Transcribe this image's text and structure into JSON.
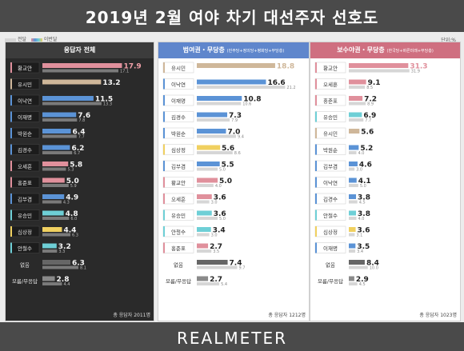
{
  "header": {
    "title": "2019년 2월 여야 차기 대선주자 선호도"
  },
  "legend": {
    "current": "전달",
    "previous": "이번달"
  },
  "unit": "단위:%",
  "footer": {
    "brand": "REALMETER"
  },
  "colors": {
    "header_bg": "#4a4a4a",
    "panel1_head": "#3c3c3c",
    "panel2_head": "#5f86cc",
    "panel3_head": "#cf6f80",
    "prev_bar": "#d6d6d6"
  },
  "chart_data": [
    {
      "type": "bar",
      "title": "응답자 전체",
      "subtitle": "",
      "total_note": "총 응답자 2011명",
      "categories": [
        "황교안",
        "유시민",
        "이낙연",
        "이재명",
        "박원순",
        "김경수",
        "오세훈",
        "홍준표",
        "김부겸",
        "유승민",
        "심상정",
        "안철수",
        "없음",
        "모름/무응답"
      ],
      "series": [
        {
          "name": "이번달",
          "values": [
            17.9,
            13.2,
            11.5,
            7.6,
            6.4,
            6.2,
            5.8,
            5.0,
            4.9,
            4.8,
            4.4,
            3.2,
            6.3,
            2.8
          ]
        },
        {
          "name": "전달",
          "values": [
            17.1,
            null,
            13.3,
            7.8,
            7.7,
            6.7,
            5.3,
            5.9,
            4.3,
            6.0,
            6.3,
            3.3,
            8.1,
            4.4
          ]
        }
      ],
      "bar_colors": [
        "#e0909c",
        "#cfb79a",
        "#5b93d6",
        "#5b93d6",
        "#5b93d6",
        "#5b93d6",
        "#e0909c",
        "#e0909c",
        "#5b93d6",
        "#6ecfd6",
        "#f0d060",
        "#6ecfd6",
        "#666666",
        "#8a8a8a"
      ]
    },
    {
      "type": "bar",
      "title": "범여권・무당층",
      "subtitle": "(민주당+정의당+평화당+무당층)",
      "total_note": "총 응답자 1212명",
      "categories": [
        "유시민",
        "이낙연",
        "이재명",
        "김경수",
        "박원순",
        "심상정",
        "김부겸",
        "황교안",
        "오세훈",
        "유승민",
        "안철수",
        "홍준표",
        "없음",
        "모름/무응답"
      ],
      "series": [
        {
          "name": "이번달",
          "values": [
            18.8,
            16.6,
            10.8,
            7.3,
            7.0,
            5.6,
            5.5,
            5.0,
            3.6,
            3.6,
            3.4,
            2.7,
            7.4,
            2.7
          ]
        },
        {
          "name": "전달",
          "values": [
            null,
            21.2,
            10.6,
            7.9,
            9.4,
            8.6,
            5.0,
            4.0,
            3.0,
            5.0,
            3.0,
            3.5,
            9.7,
            5.4
          ]
        }
      ],
      "bar_colors": [
        "#cfb79a",
        "#5b93d6",
        "#5b93d6",
        "#5b93d6",
        "#5b93d6",
        "#f0d060",
        "#5b93d6",
        "#e0909c",
        "#e0909c",
        "#6ecfd6",
        "#6ecfd6",
        "#e0909c",
        "#666666",
        "#8a8a8a"
      ]
    },
    {
      "type": "bar",
      "title": "보수야권・무당층",
      "subtitle": "(한국당+바른미래+무당층)",
      "total_note": "총 응답자 1023명",
      "categories": [
        "황교안",
        "오세훈",
        "홍준표",
        "유승민",
        "유시민",
        "박원순",
        "김부겸",
        "이낙연",
        "김경수",
        "안철수",
        "심상정",
        "이재명",
        "없음",
        "모름/무응답"
      ],
      "series": [
        {
          "name": "이번달",
          "values": [
            31.3,
            9.1,
            7.2,
            6.9,
            5.6,
            5.2,
            4.6,
            4.1,
            3.8,
            3.8,
            3.6,
            3.5,
            8.4,
            2.9
          ]
        },
        {
          "name": "전달",
          "values": [
            31.9,
            8.5,
            8.9,
            7.7,
            null,
            4.0,
            3.0,
            5.0,
            4.5,
            4.0,
            3.1,
            3.4,
            10.0,
            4.5
          ]
        }
      ],
      "bar_colors": [
        "#e0909c",
        "#e0909c",
        "#e0909c",
        "#6ecfd6",
        "#cfb79a",
        "#5b93d6",
        "#5b93d6",
        "#5b93d6",
        "#5b93d6",
        "#6ecfd6",
        "#f0d060",
        "#5b93d6",
        "#666666",
        "#8a8a8a"
      ]
    }
  ]
}
